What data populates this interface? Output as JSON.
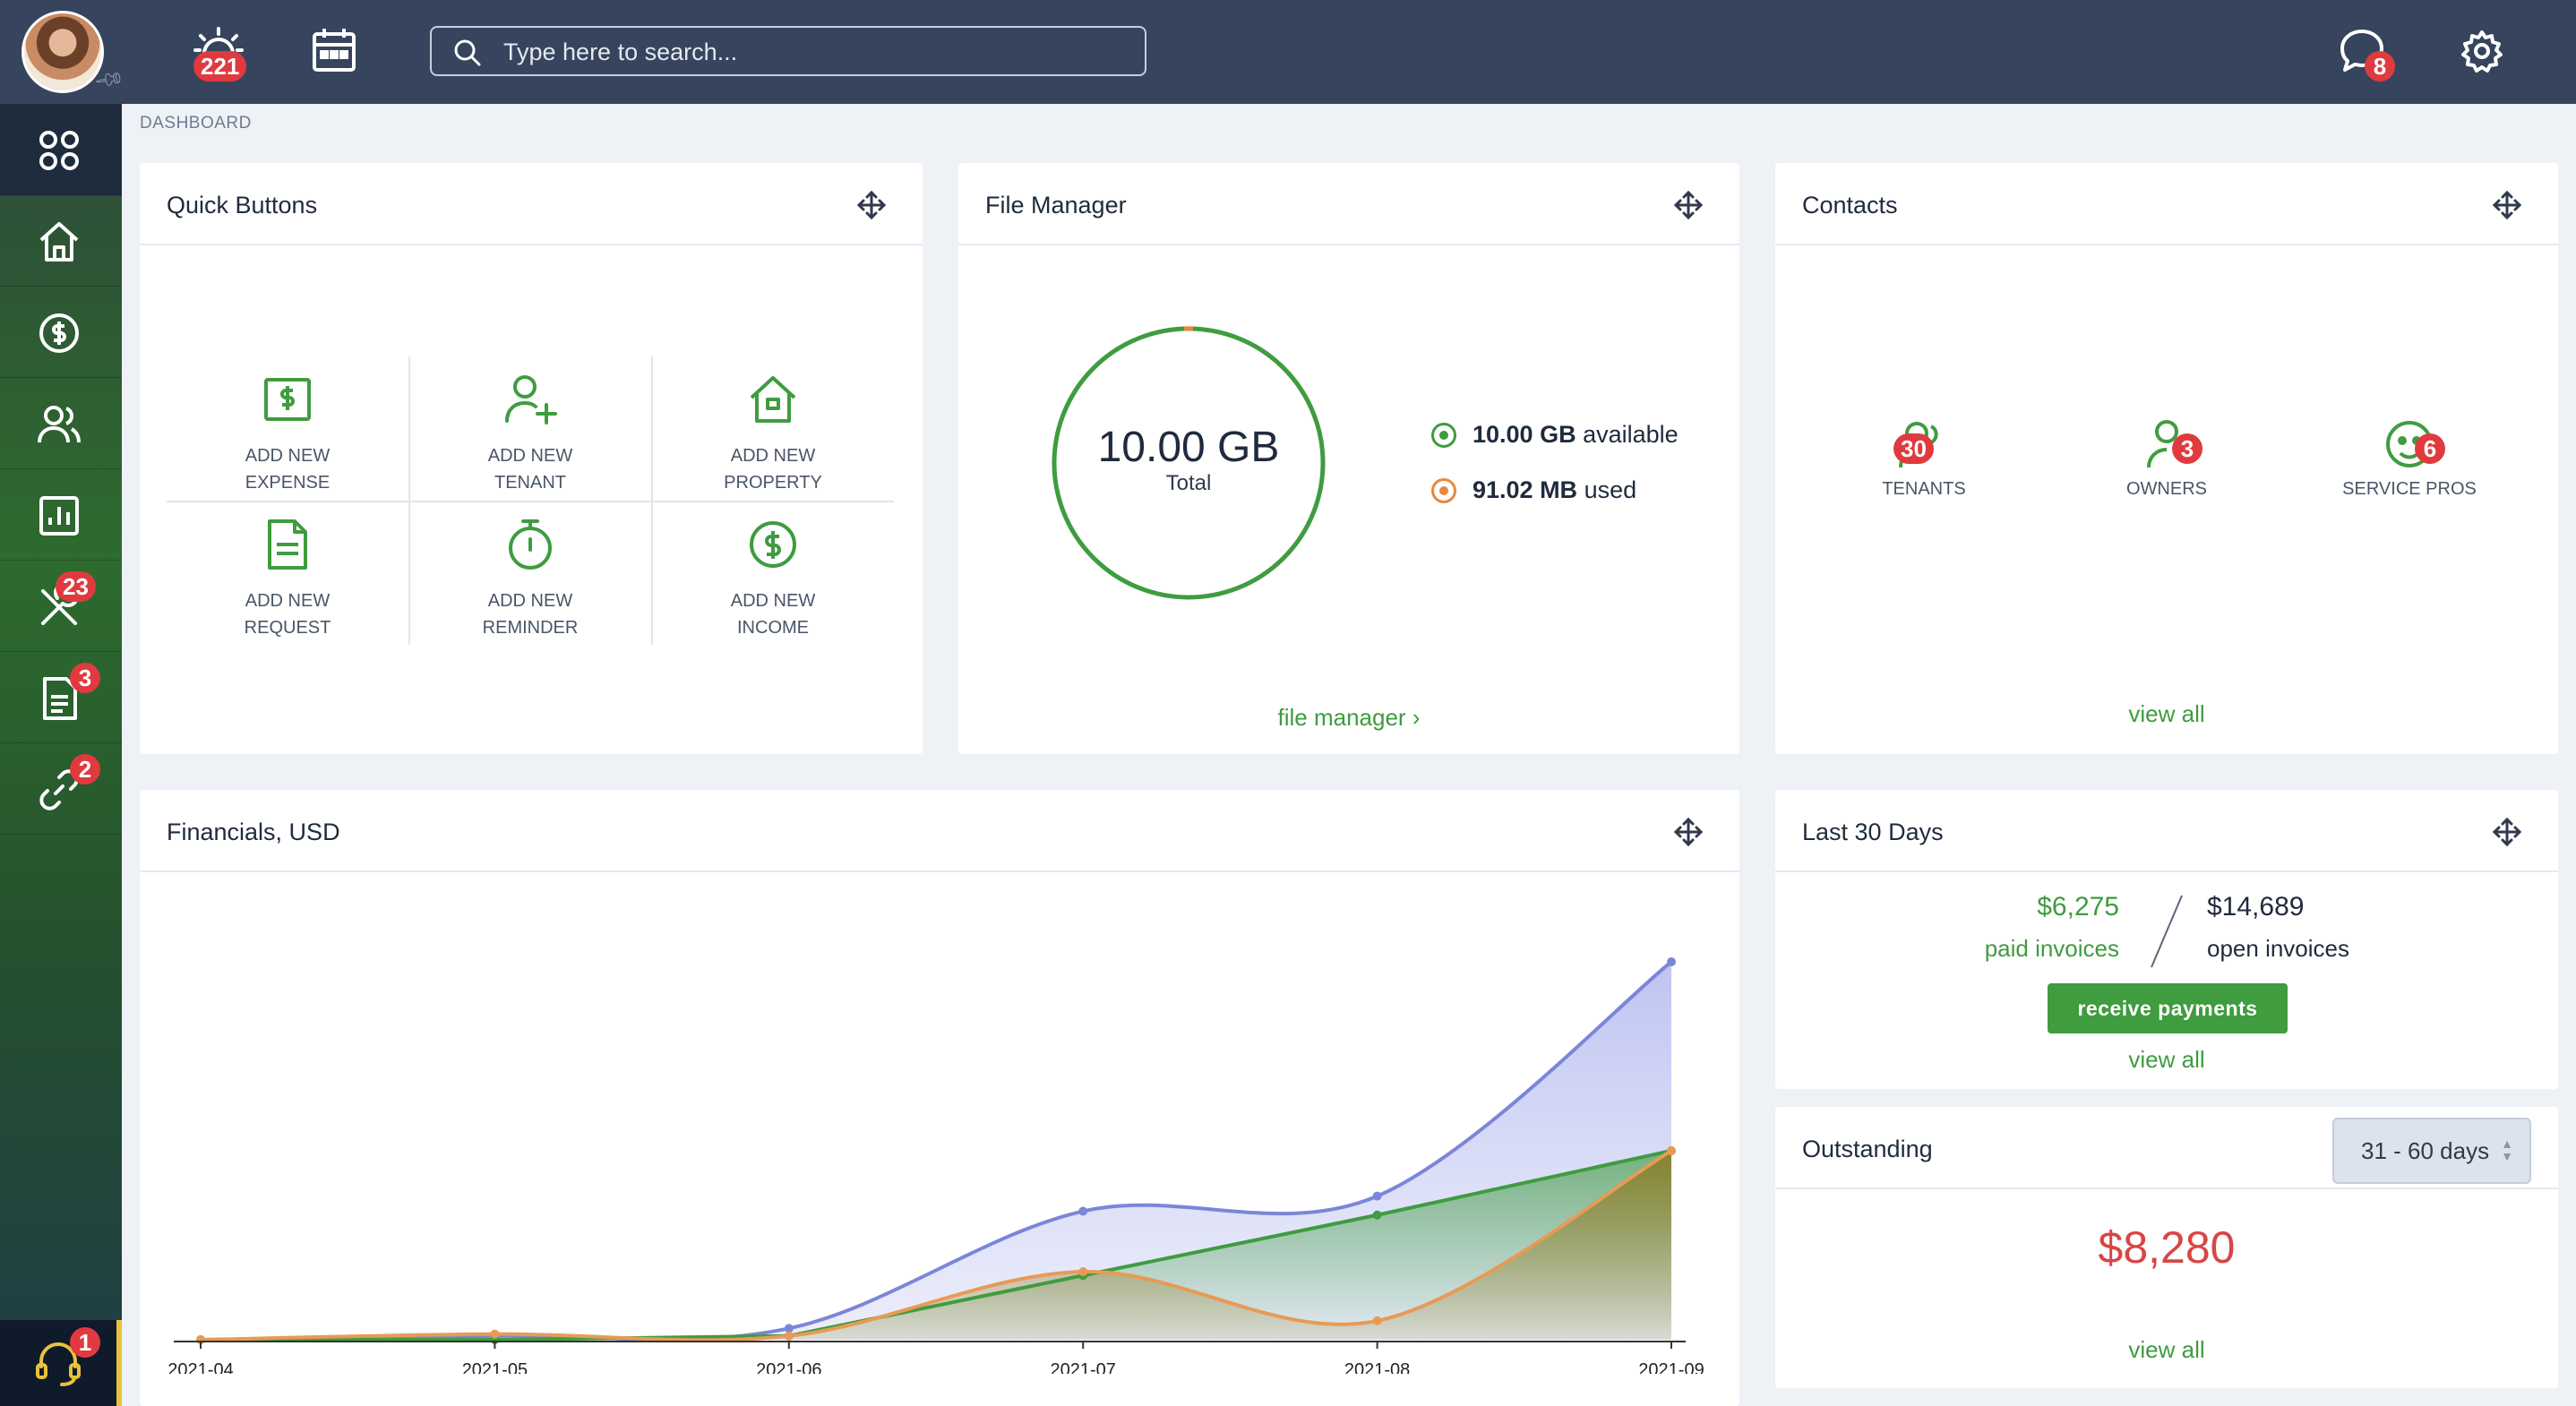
{
  "topbar": {
    "notifications_badge": "221",
    "messages_badge": "8",
    "search": {
      "placeholder": "Type here to search..."
    },
    "icons": [
      "sun-alert-icon",
      "calendar-icon",
      "chat-icon",
      "gear-icon"
    ]
  },
  "sidebar": {
    "items": [
      {
        "name": "dashboard",
        "icon": "grid-icon",
        "badge": ""
      },
      {
        "name": "home",
        "icon": "home-icon",
        "badge": ""
      },
      {
        "name": "accounting",
        "icon": "dollar-circle-icon",
        "badge": ""
      },
      {
        "name": "people",
        "icon": "users-icon",
        "badge": ""
      },
      {
        "name": "reports",
        "icon": "bar-chart-icon",
        "badge": ""
      },
      {
        "name": "maintenance",
        "icon": "tools-icon",
        "badge": "23"
      },
      {
        "name": "documents",
        "icon": "document-icon",
        "badge": "3"
      },
      {
        "name": "integrations",
        "icon": "link-icon",
        "badge": "2"
      }
    ],
    "help_badge": "1"
  },
  "breadcrumb": "DASHBOARD",
  "quick_buttons": {
    "title": "Quick Buttons",
    "items": [
      {
        "line1": "ADD NEW",
        "line2": "EXPENSE",
        "icon": "expense-icon"
      },
      {
        "line1": "ADD NEW",
        "line2": "TENANT",
        "icon": "add-user-icon"
      },
      {
        "line1": "ADD NEW",
        "line2": "PROPERTY",
        "icon": "house-icon"
      },
      {
        "line1": "ADD NEW",
        "line2": "REQUEST",
        "icon": "request-icon"
      },
      {
        "line1": "ADD NEW",
        "line2": "REMINDER",
        "icon": "timer-icon"
      },
      {
        "line1": "ADD NEW",
        "line2": "INCOME",
        "icon": "income-icon"
      }
    ]
  },
  "file_manager": {
    "title": "File Manager",
    "total_value": "10.00 GB",
    "total_label": "Total",
    "available_value": "10.00 GB",
    "available_label": "available",
    "used_value": "91.02 MB",
    "used_label": "used",
    "link": "file manager ›",
    "colors": {
      "available": "#3f9c3f",
      "used": "#e8883e"
    }
  },
  "contacts": {
    "title": "Contacts",
    "items": [
      {
        "label": "TENANTS",
        "count": "30",
        "icon": "tenants-icon"
      },
      {
        "label": "OWNERS",
        "count": "3",
        "icon": "owner-icon"
      },
      {
        "label": "SERVICE PROS",
        "count": "6",
        "icon": "service-pro-icon"
      }
    ],
    "link": "view all"
  },
  "financials": {
    "title": "Financials, USD"
  },
  "chart_data": {
    "type": "area",
    "categories": [
      "2021-04",
      "2021-05",
      "2021-06",
      "2021-07",
      "2021-08",
      "2021-09"
    ],
    "ylim": [
      0,
      100
    ],
    "grid": false,
    "legend": "none",
    "series": [
      {
        "color": "#7b86d9",
        "fill": "#c7cdf3",
        "values": [
          0,
          1,
          3,
          34,
          38,
          100
        ]
      },
      {
        "color": "#3f9c3f",
        "fill": "#3f9c3f",
        "values": [
          0,
          0,
          1,
          17,
          33,
          50
        ]
      },
      {
        "color": "#e89a55",
        "fill": "#b8892f",
        "values": [
          0,
          1.5,
          1,
          18,
          5,
          50
        ]
      }
    ]
  },
  "last30": {
    "title": "Last 30 Days",
    "paid_value": "$6,275",
    "paid_label": "paid invoices",
    "open_value": "$14,689",
    "open_label": "open invoices",
    "button": "receive payments",
    "link": "view all"
  },
  "outstanding": {
    "title": "Outstanding",
    "range": "31 - 60 days",
    "amount": "$8,280",
    "link": "view all",
    "amount_color": "#d94545"
  }
}
